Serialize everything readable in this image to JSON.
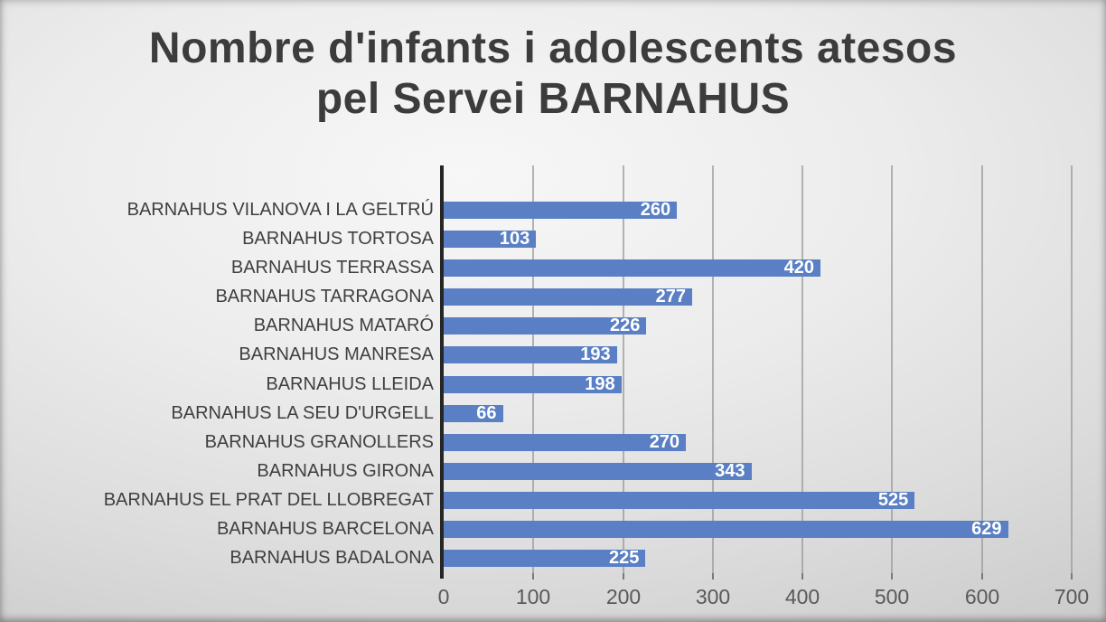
{
  "title": {
    "text": "Nombre d'infants i adolescents atesos pel Servei BARNAHUS",
    "lines": [
      "Nombre d'infants i adolescents atesos",
      "pel Servei BARNAHUS"
    ],
    "color": "#3c3c3c"
  },
  "chart_data": {
    "type": "bar",
    "orientation": "horizontal",
    "title": "Nombre d'infants i adolescents atesos pel Servei BARNAHUS",
    "categories": [
      "BARNAHUS VILANOVA I LA GELTRÚ",
      "BARNAHUS TORTOSA",
      "BARNAHUS TERRASSA",
      "BARNAHUS TARRAGONA",
      "BARNAHUS MATARÓ",
      "BARNAHUS MANRESA",
      "BARNAHUS LLEIDA",
      "BARNAHUS LA SEU D'URGELL",
      "BARNAHUS GRANOLLERS",
      "BARNAHUS GIRONA",
      "BARNAHUS EL PRAT DEL LLOBREGAT",
      "BARNAHUS BARCELONA",
      "BARNAHUS BADALONA"
    ],
    "values": [
      260,
      103,
      420,
      277,
      226,
      193,
      198,
      66,
      270,
      343,
      525,
      629,
      225
    ],
    "xlabel": "",
    "ylabel": "",
    "xlim": [
      0,
      700
    ],
    "xticks": [
      0,
      100,
      200,
      300,
      400,
      500,
      600,
      700
    ],
    "grid": true,
    "legend": false,
    "value_label_position": "inside-end",
    "colors": {
      "bar": "#5a7fc4",
      "value_label": "#ffffff",
      "axis_line": "#262626",
      "gridline": "#9c9c9c",
      "tick_label": "#595959",
      "category_label": "#3f3f3f"
    }
  }
}
